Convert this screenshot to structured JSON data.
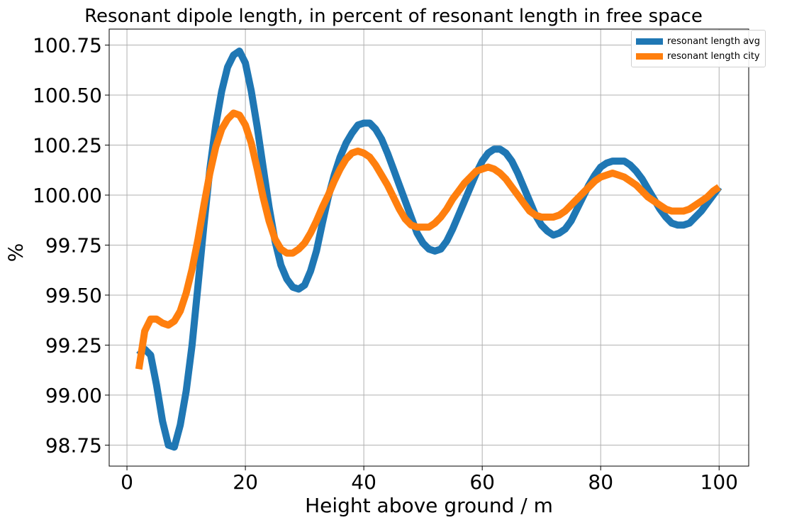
{
  "chart_data": {
    "type": "line",
    "title": "Resonant dipole length, in percent of resonant length in free space",
    "xlabel": "Height above ground / m",
    "ylabel": "%",
    "xlim": [
      -3,
      105
    ],
    "ylim": [
      98.645,
      100.83
    ],
    "xticks": [
      0,
      20,
      40,
      60,
      80,
      100
    ],
    "xtick_labels": [
      "0",
      "20",
      "40",
      "60",
      "80",
      "100"
    ],
    "yticks": [
      98.75,
      99.0,
      99.25,
      99.5,
      99.75,
      100.0,
      100.25,
      100.5,
      100.75
    ],
    "ytick_labels": [
      "98.75",
      "99.00",
      "99.25",
      "99.50",
      "99.75",
      "100.00",
      "100.25",
      "100.50",
      "100.75"
    ],
    "grid": true,
    "legend_position": "top-right",
    "series": [
      {
        "name": "resonant length avg",
        "color": "#1f77b4",
        "x": [
          2,
          3,
          4,
          5,
          6,
          7,
          8,
          9,
          10,
          11,
          12,
          13,
          14,
          15,
          16,
          17,
          18,
          19,
          20,
          21,
          22,
          23,
          24,
          25,
          26,
          27,
          28,
          29,
          30,
          31,
          32,
          33,
          34,
          35,
          36,
          37,
          38,
          39,
          40,
          41,
          42,
          43,
          44,
          45,
          46,
          47,
          48,
          49,
          50,
          51,
          52,
          53,
          54,
          55,
          56,
          57,
          58,
          59,
          60,
          61,
          62,
          63,
          64,
          65,
          66,
          67,
          68,
          69,
          70,
          71,
          72,
          73,
          74,
          75,
          76,
          77,
          78,
          79,
          80,
          81,
          82,
          83,
          84,
          85,
          86,
          87,
          88,
          89,
          90,
          91,
          92,
          93,
          94,
          95,
          96,
          97,
          98,
          99,
          100
        ],
        "y": [
          99.2,
          99.23,
          99.2,
          99.05,
          98.87,
          98.75,
          98.74,
          98.85,
          99.02,
          99.25,
          99.55,
          99.85,
          100.13,
          100.35,
          100.52,
          100.64,
          100.7,
          100.72,
          100.66,
          100.52,
          100.34,
          100.14,
          99.94,
          99.77,
          99.65,
          99.58,
          99.54,
          99.53,
          99.55,
          99.62,
          99.72,
          99.86,
          99.99,
          100.1,
          100.19,
          100.26,
          100.31,
          100.35,
          100.36,
          100.36,
          100.33,
          100.28,
          100.21,
          100.13,
          100.05,
          99.97,
          99.89,
          99.81,
          99.76,
          99.73,
          99.72,
          99.73,
          99.77,
          99.83,
          99.9,
          99.97,
          100.04,
          100.11,
          100.17,
          100.21,
          100.23,
          100.23,
          100.21,
          100.17,
          100.11,
          100.04,
          99.97,
          99.9,
          99.85,
          99.82,
          99.8,
          99.81,
          99.83,
          99.87,
          99.93,
          99.99,
          100.05,
          100.1,
          100.14,
          100.16,
          100.17,
          100.17,
          100.17,
          100.15,
          100.12,
          100.08,
          100.03,
          99.98,
          99.93,
          99.89,
          99.86,
          99.85,
          99.85,
          99.86,
          99.89,
          99.92,
          99.96,
          100.0,
          100.04
        ]
      },
      {
        "name": "resonant length city",
        "color": "#ff7f0e",
        "x": [
          2,
          3,
          4,
          5,
          6,
          7,
          8,
          9,
          10,
          11,
          12,
          13,
          14,
          15,
          16,
          17,
          18,
          19,
          20,
          21,
          22,
          23,
          24,
          25,
          26,
          27,
          28,
          29,
          30,
          31,
          32,
          33,
          34,
          35,
          36,
          37,
          38,
          39,
          40,
          41,
          42,
          43,
          44,
          45,
          46,
          47,
          48,
          49,
          50,
          51,
          52,
          53,
          54,
          55,
          56,
          57,
          58,
          59,
          60,
          61,
          62,
          63,
          64,
          65,
          66,
          67,
          68,
          69,
          70,
          71,
          72,
          73,
          74,
          75,
          76,
          77,
          78,
          79,
          80,
          81,
          82,
          83,
          84,
          85,
          86,
          87,
          88,
          89,
          90,
          91,
          92,
          93,
          94,
          95,
          96,
          97,
          98,
          99,
          100
        ],
        "y": [
          99.13,
          99.32,
          99.38,
          99.38,
          99.36,
          99.35,
          99.37,
          99.42,
          99.51,
          99.63,
          99.78,
          99.95,
          100.11,
          100.24,
          100.33,
          100.38,
          100.41,
          100.4,
          100.35,
          100.26,
          100.13,
          99.99,
          99.87,
          99.78,
          99.73,
          99.71,
          99.71,
          99.73,
          99.76,
          99.81,
          99.87,
          99.94,
          100.0,
          100.07,
          100.13,
          100.18,
          100.21,
          100.22,
          100.21,
          100.19,
          100.15,
          100.1,
          100.05,
          99.99,
          99.93,
          99.88,
          99.85,
          99.84,
          99.84,
          99.84,
          99.86,
          99.89,
          99.93,
          99.98,
          100.02,
          100.06,
          100.09,
          100.12,
          100.13,
          100.14,
          100.13,
          100.11,
          100.08,
          100.04,
          100.0,
          99.96,
          99.92,
          99.9,
          99.89,
          99.89,
          99.89,
          99.9,
          99.92,
          99.95,
          99.98,
          100.01,
          100.04,
          100.07,
          100.09,
          100.1,
          100.11,
          100.1,
          100.09,
          100.07,
          100.05,
          100.02,
          99.99,
          99.97,
          99.95,
          99.93,
          99.92,
          99.92,
          99.92,
          99.93,
          99.95,
          99.97,
          99.99,
          100.02,
          100.04
        ]
      }
    ]
  }
}
